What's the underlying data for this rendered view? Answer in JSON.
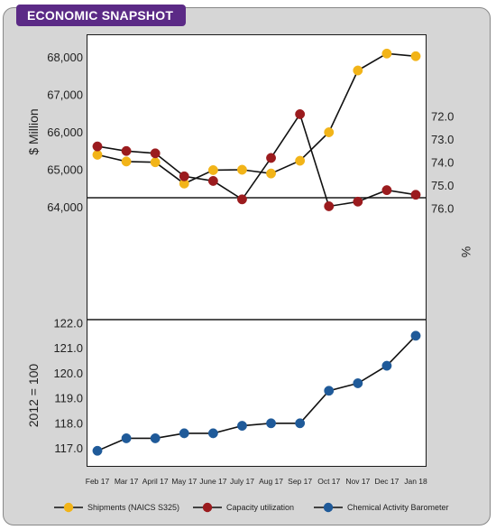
{
  "badge": {
    "title": "ECONOMIC SNAPSHOT"
  },
  "chart_data": [
    {
      "type": "line",
      "name": "shipments-panel",
      "categories": [
        "Feb 17",
        "Mar 17",
        "April 17",
        "May 17",
        "June 17",
        "July 17",
        "Aug 17",
        "Sep 17",
        "Oct 17",
        "Nov 17",
        "Dec 17",
        "Jan 18"
      ],
      "series": [
        {
          "name": "Shipments (NAICS S325)",
          "color": "#f2b418",
          "values": [
            65400,
            65220,
            65200,
            64630,
            64990,
            65000,
            64900,
            65240,
            66000,
            67650,
            68100,
            68030
          ]
        }
      ],
      "ylabel": "$ Million",
      "yticks": [
        64000,
        65000,
        66000,
        67000,
        68000
      ],
      "ylim": [
        64000,
        68400
      ]
    },
    {
      "type": "line",
      "name": "capacity-panel",
      "categories": [
        "Feb 17",
        "Mar 17",
        "April 17",
        "May 17",
        "June 17",
        "July 17",
        "Aug 17",
        "Sep 17",
        "Oct 17",
        "Nov 17",
        "Dec 17",
        "Jan 18"
      ],
      "series": [
        {
          "name": "Capacity utilization",
          "color": "#9b1b1e",
          "values": [
            73.3,
            73.5,
            73.6,
            74.6,
            74.8,
            75.6,
            73.8,
            71.9,
            75.9,
            75.7,
            75.2,
            75.4
          ]
        }
      ],
      "ylabel": "%",
      "yticks": [
        72.0,
        73.0,
        74.0,
        75.0,
        76.0
      ],
      "ylim": [
        71.3,
        76.6
      ]
    },
    {
      "type": "line",
      "name": "cab-panel",
      "categories": [
        "Feb 17",
        "Mar 17",
        "April 17",
        "May 17",
        "June 17",
        "July 17",
        "Aug 17",
        "Sep 17",
        "Oct 17",
        "Nov 17",
        "Dec 17",
        "Jan 18"
      ],
      "series": [
        {
          "name": "Chemical Activity Barometer",
          "color": "#1f5a99",
          "values": [
            116.9,
            117.4,
            117.4,
            117.6,
            117.6,
            117.9,
            118.0,
            118.0,
            119.3,
            119.6,
            120.3,
            121.5
          ]
        }
      ],
      "ylabel": "2012 = 100",
      "yticks": [
        117.0,
        118.0,
        119.0,
        120.0,
        121.0,
        122.0
      ],
      "ylim": [
        116.4,
        122.0
      ]
    }
  ],
  "tick_labels": {
    "shipments": [
      "64,000",
      "65,000",
      "66,000",
      "67,000",
      "68,000"
    ],
    "capacity": [
      "72.0",
      "73.0",
      "74.0",
      "75.0",
      "76.0"
    ],
    "cab": [
      "117.0",
      "118.0",
      "119.0",
      "120.0",
      "121.0",
      "122.0"
    ]
  },
  "legend": [
    {
      "label": "Shipments (NAICS S325)",
      "color": "#f2b418"
    },
    {
      "label": "Capacity utilization",
      "color": "#9b1b1e"
    },
    {
      "label": "Chemical Activity Barometer",
      "color": "#1f5a99"
    }
  ]
}
